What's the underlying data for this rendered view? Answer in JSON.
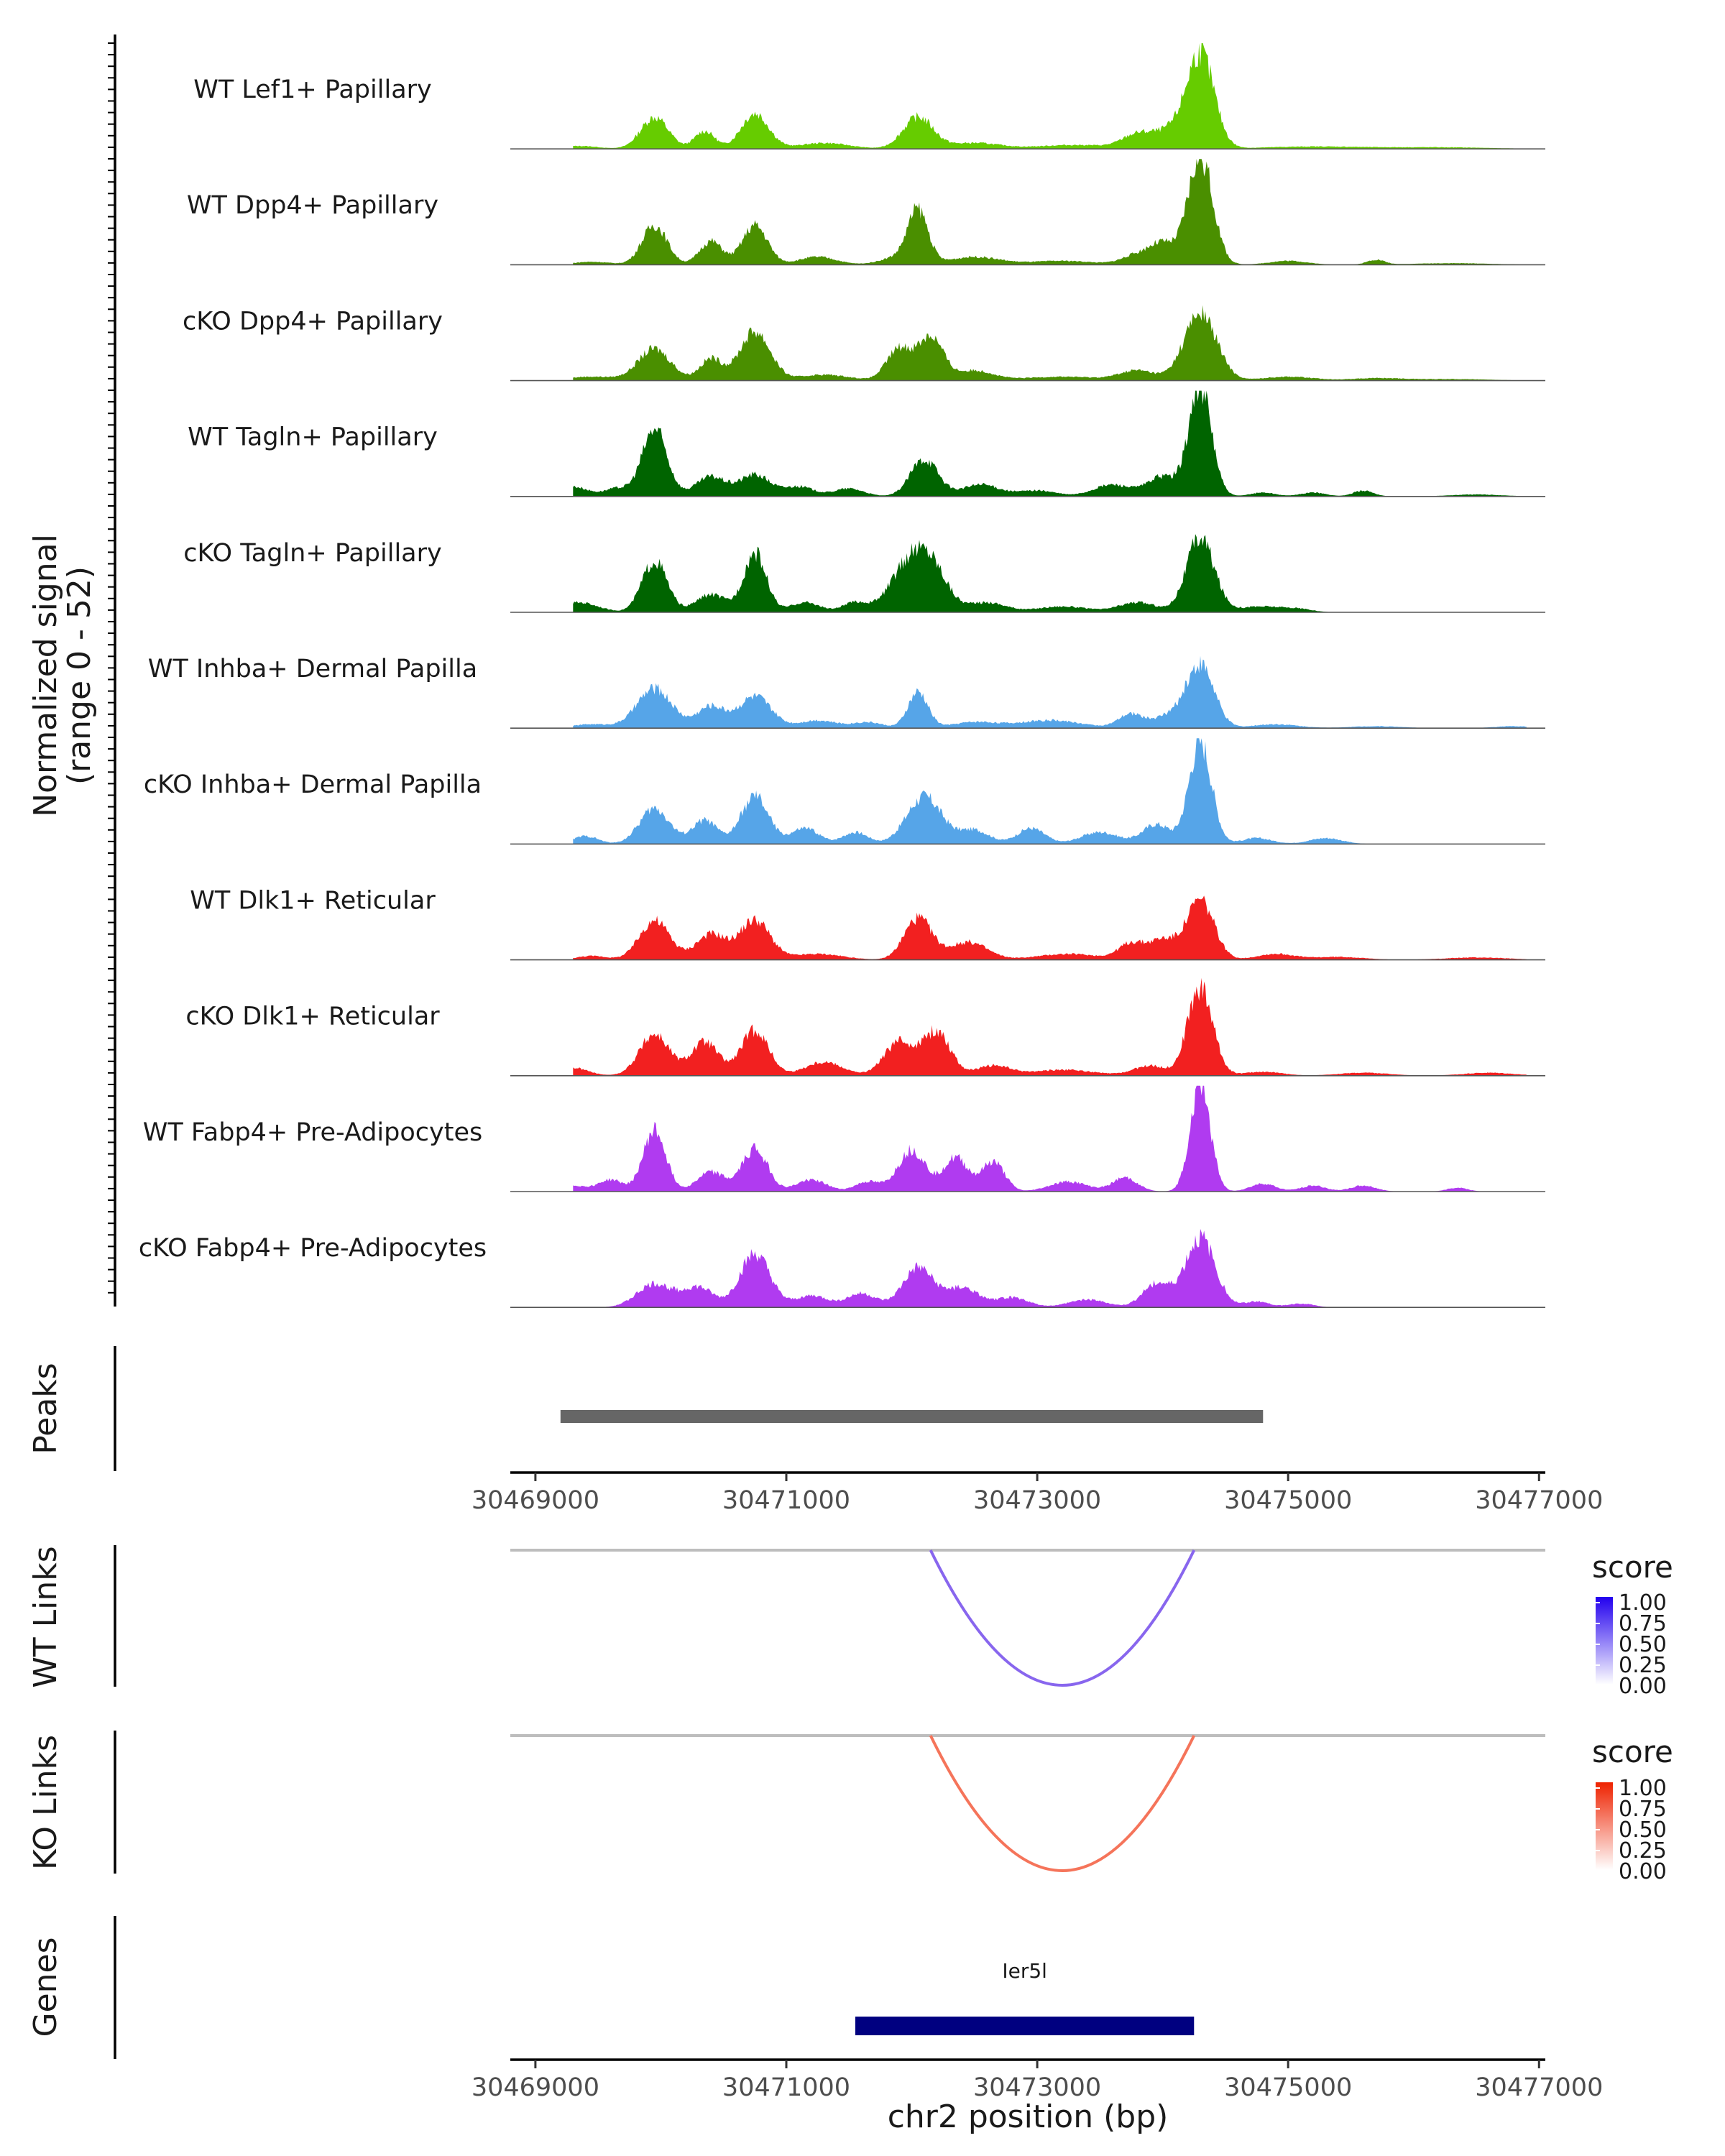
{
  "chart_data": {
    "type": "area",
    "title": "",
    "ylabel": "Normalized signal",
    "ylabel_range": "(range 0 - 52)",
    "xlabel": "chr2 position (bp)",
    "xlim": [
      30468800,
      30477050
    ],
    "ylim": [
      0,
      52
    ],
    "xticks": [
      30469000,
      30471000,
      30473000,
      30475000,
      30477000
    ],
    "tracks": [
      {
        "name": "WT Lef1+ Papillary",
        "color": "#66cc00",
        "peaks": [
          [
            30469350,
            1.5,
            150
          ],
          [
            30469950,
            16,
            110
          ],
          [
            30470350,
            9,
            80
          ],
          [
            30470750,
            18,
            110
          ],
          [
            30471300,
            3,
            200
          ],
          [
            30472050,
            16,
            120
          ],
          [
            30472500,
            3,
            200
          ],
          [
            30473300,
            2,
            300
          ],
          [
            30473800,
            7,
            120
          ],
          [
            30474050,
            8,
            120
          ],
          [
            30474300,
            48,
            110
          ],
          [
            30475200,
            1.2,
            400
          ],
          [
            30476200,
            0.8,
            400
          ]
        ]
      },
      {
        "name": "WT Dpp4+ Papillary",
        "color": "#4a8f00",
        "peaks": [
          [
            30469450,
            1.5,
            150
          ],
          [
            30469950,
            20,
            100
          ],
          [
            30470400,
            12,
            90
          ],
          [
            30470750,
            20,
            100
          ],
          [
            30471250,
            4,
            150
          ],
          [
            30471900,
            4,
            140
          ],
          [
            30472050,
            26,
            80
          ],
          [
            30472500,
            4,
            200
          ],
          [
            30473200,
            2,
            250
          ],
          [
            30473800,
            5,
            120
          ],
          [
            30474000,
            10,
            100
          ],
          [
            30474300,
            55,
            100
          ],
          [
            30475000,
            2,
            150
          ],
          [
            30475700,
            2.5,
            70
          ],
          [
            30476300,
            0.8,
            300
          ]
        ]
      },
      {
        "name": "cKO Dpp4+ Papillary",
        "color": "#4a8f00",
        "peaks": [
          [
            30469450,
            2,
            200
          ],
          [
            30469950,
            16,
            130
          ],
          [
            30470400,
            11,
            90
          ],
          [
            30470750,
            25,
            120
          ],
          [
            30471300,
            3,
            200
          ],
          [
            30471900,
            16,
            100
          ],
          [
            30472150,
            22,
            100
          ],
          [
            30472500,
            5,
            150
          ],
          [
            30473200,
            2,
            300
          ],
          [
            30473800,
            5,
            140
          ],
          [
            30474300,
            34,
            130
          ],
          [
            30475000,
            2,
            200
          ],
          [
            30475700,
            1.2,
            200
          ],
          [
            30476300,
            0.8,
            300
          ]
        ]
      },
      {
        "name": "WT Tagln+ Papillary",
        "color": "#006400",
        "peaks": [
          [
            30469300,
            5,
            120
          ],
          [
            30469650,
            4,
            100
          ],
          [
            30469950,
            34,
            100
          ],
          [
            30470400,
            10,
            120
          ],
          [
            30470750,
            11,
            120
          ],
          [
            30471100,
            5,
            120
          ],
          [
            30471500,
            4,
            120
          ],
          [
            30472100,
            19,
            110
          ],
          [
            30472550,
            6,
            150
          ],
          [
            30473000,
            3,
            150
          ],
          [
            30473600,
            6,
            150
          ],
          [
            30474000,
            10,
            120
          ],
          [
            30474300,
            56,
            90
          ],
          [
            30474800,
            2,
            100
          ],
          [
            30475200,
            2,
            100
          ],
          [
            30475600,
            3,
            80
          ],
          [
            30476500,
            1,
            200
          ]
        ]
      },
      {
        "name": "cKO Tagln+ Papillary",
        "color": "#006400",
        "peaks": [
          [
            30469350,
            5,
            150
          ],
          [
            30469950,
            26,
            100
          ],
          [
            30470400,
            9,
            120
          ],
          [
            30470750,
            30,
            90
          ],
          [
            30471150,
            5,
            120
          ],
          [
            30471550,
            5,
            100
          ],
          [
            30471950,
            20,
            140
          ],
          [
            30472150,
            23,
            130
          ],
          [
            30472600,
            5,
            150
          ],
          [
            30473200,
            3,
            200
          ],
          [
            30473800,
            5,
            150
          ],
          [
            30474300,
            38,
            110
          ],
          [
            30474800,
            3,
            200
          ],
          [
            30475100,
            1,
            100
          ]
        ]
      },
      {
        "name": "WT Inhba+ Dermal Papilla",
        "color": "#56a5e8",
        "peaks": [
          [
            30469450,
            2,
            150
          ],
          [
            30469950,
            20,
            140
          ],
          [
            30470400,
            11,
            110
          ],
          [
            30470750,
            16,
            130
          ],
          [
            30471250,
            4,
            150
          ],
          [
            30471650,
            3,
            120
          ],
          [
            30472050,
            18,
            80
          ],
          [
            30472500,
            3,
            180
          ],
          [
            30473100,
            4,
            250
          ],
          [
            30473750,
            7,
            100
          ],
          [
            30474050,
            6,
            120
          ],
          [
            30474300,
            32,
            110
          ],
          [
            30474900,
            2,
            180
          ],
          [
            30475700,
            1,
            200
          ],
          [
            30476800,
            1,
            150
          ]
        ]
      },
      {
        "name": "cKO Inhba+ Dermal Papilla",
        "color": "#56a5e8",
        "peaks": [
          [
            30469400,
            4,
            100
          ],
          [
            30469950,
            18,
            120
          ],
          [
            30470350,
            12,
            100
          ],
          [
            30470750,
            24,
            110
          ],
          [
            30471150,
            8,
            110
          ],
          [
            30471550,
            6,
            100
          ],
          [
            30472100,
            24,
            140
          ],
          [
            30472500,
            7,
            120
          ],
          [
            30472950,
            8,
            110
          ],
          [
            30473500,
            6,
            150
          ],
          [
            30473950,
            10,
            110
          ],
          [
            30474300,
            52,
            90
          ],
          [
            30474750,
            3,
            120
          ],
          [
            30475300,
            3,
            130
          ]
        ]
      },
      {
        "name": "WT Dlk1+ Reticular",
        "color": "#f22020",
        "peaks": [
          [
            30469450,
            2,
            120
          ],
          [
            30469950,
            20,
            120
          ],
          [
            30470400,
            13,
            120
          ],
          [
            30470750,
            20,
            120
          ],
          [
            30471250,
            3,
            200
          ],
          [
            30472050,
            21,
            110
          ],
          [
            30472450,
            9,
            150
          ],
          [
            30473250,
            3,
            250
          ],
          [
            30473750,
            8,
            100
          ],
          [
            30474000,
            10,
            110
          ],
          [
            30474300,
            30,
            110
          ],
          [
            30474900,
            3,
            150
          ],
          [
            30475400,
            1.5,
            200
          ],
          [
            30476500,
            1.2,
            250
          ]
        ]
      },
      {
        "name": "cKO Dlk1+ Reticular",
        "color": "#f22020",
        "peaks": [
          [
            30469300,
            4,
            120
          ],
          [
            30469950,
            21,
            120
          ],
          [
            30470350,
            17,
            110
          ],
          [
            30470750,
            23,
            110
          ],
          [
            30471300,
            7,
            150
          ],
          [
            30471900,
            17,
            120
          ],
          [
            30472200,
            22,
            110
          ],
          [
            30472650,
            5,
            130
          ],
          [
            30473200,
            3,
            250
          ],
          [
            30473900,
            5,
            130
          ],
          [
            30474300,
            45,
            100
          ],
          [
            30474800,
            2,
            150
          ],
          [
            30475600,
            1.5,
            200
          ],
          [
            30476600,
            1.5,
            200
          ]
        ]
      },
      {
        "name": "WT Fabp4+ Pre-Adipocytes",
        "color": "#b03bf0",
        "peaks": [
          [
            30469300,
            3,
            100
          ],
          [
            30469600,
            6,
            100
          ],
          [
            30469950,
            31,
            90
          ],
          [
            30470400,
            10,
            110
          ],
          [
            30470750,
            22,
            100
          ],
          [
            30471200,
            6,
            120
          ],
          [
            30471650,
            5,
            100
          ],
          [
            30472000,
            21,
            110
          ],
          [
            30472350,
            17,
            100
          ],
          [
            30472650,
            15,
            90
          ],
          [
            30473250,
            5,
            150
          ],
          [
            30473700,
            7,
            100
          ],
          [
            30474300,
            55,
            80
          ],
          [
            30474800,
            4,
            100
          ],
          [
            30475200,
            3,
            100
          ],
          [
            30475600,
            3,
            100
          ],
          [
            30476350,
            2,
            80
          ]
        ]
      },
      {
        "name": "cKO Fabp4+ Pre-Adipocytes",
        "color": "#b03bf0",
        "peaks": [
          [
            30469950,
            12,
            140
          ],
          [
            30470300,
            10,
            120
          ],
          [
            30470750,
            27,
            120
          ],
          [
            30471200,
            6,
            130
          ],
          [
            30471600,
            7,
            120
          ],
          [
            30472050,
            20,
            120
          ],
          [
            30472400,
            10,
            130
          ],
          [
            30472800,
            5,
            130
          ],
          [
            30473400,
            4,
            150
          ],
          [
            30473950,
            12,
            110
          ],
          [
            30474300,
            35,
            120
          ],
          [
            30474750,
            3,
            100
          ],
          [
            30475100,
            2,
            100
          ]
        ]
      }
    ],
    "peaks_track": {
      "label": "Peaks",
      "color": "#666666",
      "intervals": [
        [
          30469200,
          30474800
        ]
      ]
    },
    "links": [
      {
        "label": "WT Links",
        "from": 30472150,
        "to": 30474250,
        "score": 0.62,
        "color": "#8866ee",
        "legend": {
          "title": "score",
          "ticks": [
            "1.00",
            "0.75",
            "0.50",
            "0.25",
            "0.00"
          ],
          "low": "#ffffff",
          "high": "#2200ee"
        }
      },
      {
        "label": "KO Links",
        "from": 30472150,
        "to": 30474250,
        "score": 0.62,
        "color": "#f5745a",
        "legend": {
          "title": "score",
          "ticks": [
            "1.00",
            "0.75",
            "0.50",
            "0.25",
            "0.00"
          ],
          "low": "#ffffff",
          "high": "#ee2200"
        }
      }
    ],
    "genes": {
      "label": "Genes",
      "name": "Ier5l",
      "start": 30471550,
      "end": 30474250,
      "color": "#000080"
    }
  }
}
